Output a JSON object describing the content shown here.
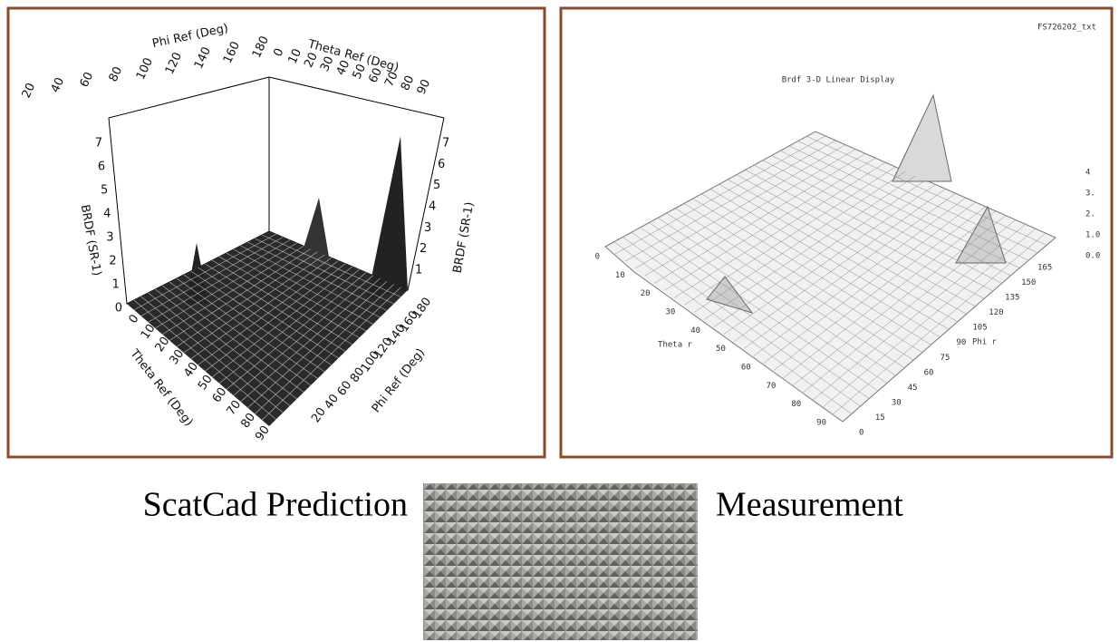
{
  "left_plot": {
    "phi_axis_title_top": "Phi Ref (Deg)",
    "theta_axis_title_top": "Theta Ref (Deg)",
    "z_axis_title_left": "BRDF (SR-1)",
    "z_axis_title_right": "BRDF (SR-1)",
    "theta_axis_title_bottom": "Theta Ref (Deg)",
    "phi_axis_title_bottom": "Phi Ref (Deg)",
    "phi_ticks_top": [
      20,
      40,
      60,
      80,
      100,
      120,
      140,
      160,
      180
    ],
    "theta_ticks_top": [
      0,
      10,
      20,
      30,
      40,
      50,
      60,
      70,
      80,
      90
    ],
    "z_ticks_left": [
      0,
      1,
      2,
      3,
      4,
      5,
      6,
      7
    ],
    "z_ticks_right": [
      1,
      2,
      3,
      4,
      5,
      6,
      7
    ],
    "theta_ticks_bottom": [
      0,
      10,
      20,
      30,
      40,
      50,
      60,
      70,
      80,
      90
    ],
    "phi_ticks_bottom": [
      20,
      40,
      60,
      80,
      100,
      120,
      140,
      160,
      180
    ]
  },
  "right_plot": {
    "file_name": "FS726202_txt",
    "title": "Brdf 3-D Linear Display",
    "theta_axis_title": "Theta r",
    "phi_axis_title": "Phi r",
    "theta_ticks": [
      0,
      10,
      20,
      30,
      40,
      50,
      60,
      70,
      80,
      90
    ],
    "phi_ticks": [
      0,
      15,
      30,
      45,
      60,
      75,
      90,
      105,
      120,
      135,
      150,
      165
    ],
    "z_ticks": [
      "4",
      "3.",
      "2.",
      "1.0",
      "0.0"
    ]
  },
  "captions": {
    "left": "ScatCad Prediction",
    "right": "Measurement"
  }
}
